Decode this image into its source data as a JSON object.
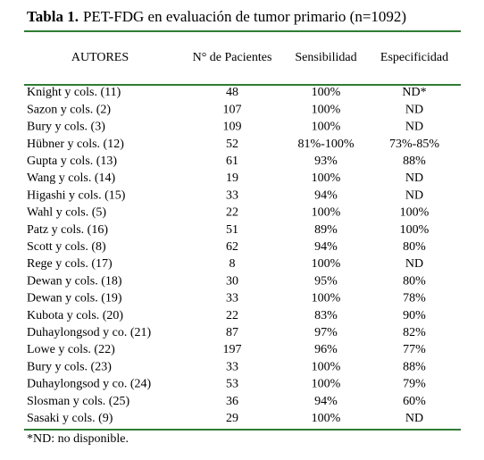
{
  "title": {
    "label": "Tabla 1.",
    "text": "PET-FDG en evaluación de tumor primario (n=1092)"
  },
  "table": {
    "header": [
      "AUTORES",
      "N° de Pacientes",
      "Sensibilidad",
      "Especificidad"
    ],
    "rows": [
      [
        "Knight y cols. (11)",
        "48",
        "100%",
        "ND*"
      ],
      [
        "Sazon y cols. (2)",
        "107",
        "100%",
        "ND"
      ],
      [
        "Bury y cols. (3)",
        "109",
        "100%",
        "ND"
      ],
      [
        "Hübner y cols. (12)",
        "52",
        "81%-100%",
        "73%-85%"
      ],
      [
        "Gupta y cols. (13)",
        "61",
        "93%",
        "88%"
      ],
      [
        "Wang y cols. (14)",
        "19",
        "100%",
        "ND"
      ],
      [
        "Higashi y cols. (15)",
        "33",
        "94%",
        "ND"
      ],
      [
        "Wahl y cols. (5)",
        "22",
        "100%",
        "100%"
      ],
      [
        "Patz y cols. (16)",
        "51",
        "89%",
        "100%"
      ],
      [
        "Scott y cols. (8)",
        "62",
        "94%",
        "80%"
      ],
      [
        "Rege y cols. (17)",
        "8",
        "100%",
        "ND"
      ],
      [
        "Dewan y cols. (18)",
        "30",
        "95%",
        "80%"
      ],
      [
        "Dewan y cols. (19)",
        "33",
        "100%",
        "78%"
      ],
      [
        "Kubota y cols. (20)",
        "22",
        "83%",
        "90%"
      ],
      [
        "Duhaylongsod y co. (21)",
        "87",
        "97%",
        "82%"
      ],
      [
        "Lowe y cols. (22)",
        "197",
        "96%",
        "77%"
      ],
      [
        "Bury y cols. (23)",
        "33",
        "100%",
        "88%"
      ],
      [
        "Duhaylongsod y co. (24)",
        "53",
        "100%",
        "79%"
      ],
      [
        "Slosman y cols. (25)",
        "36",
        "94%",
        "60%"
      ],
      [
        "Sasaki y cols. (9)",
        "29",
        "100%",
        "ND"
      ]
    ]
  },
  "footnote": "*ND: no disponible."
}
